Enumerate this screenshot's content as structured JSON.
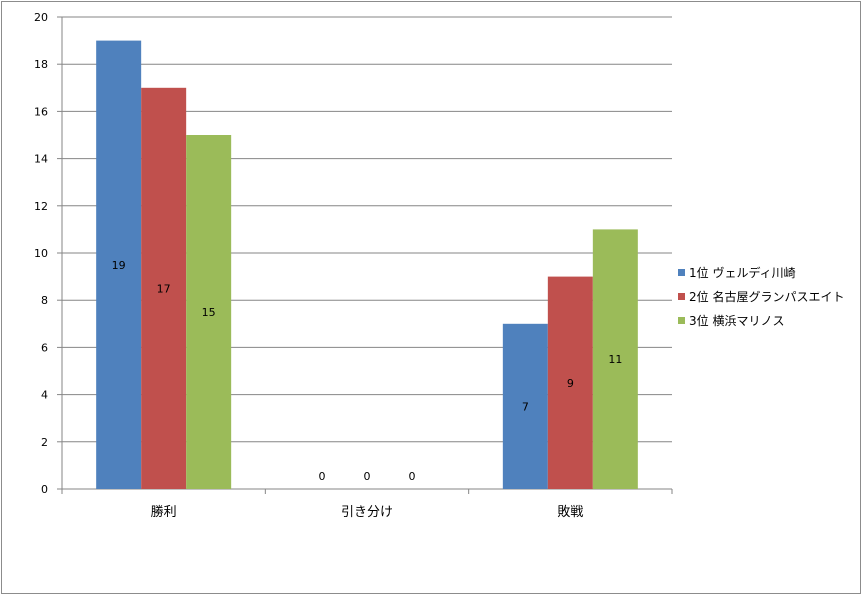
{
  "chart_data": {
    "type": "bar",
    "categories": [
      "勝利",
      "引き分け",
      "敗戦"
    ],
    "series": [
      {
        "name": "1位  ヴェルディ川崎",
        "color": "#4f81bd",
        "values": [
          19,
          0,
          7
        ]
      },
      {
        "name": "2位  名古屋グランパスエイト",
        "color": "#c0504d",
        "values": [
          17,
          0,
          9
        ]
      },
      {
        "name": "3位  横浜マリノス",
        "color": "#9bbb59",
        "values": [
          15,
          0,
          11
        ]
      }
    ],
    "ylim": [
      0,
      20
    ],
    "yticks": [
      0,
      2,
      4,
      6,
      8,
      10,
      12,
      14,
      16,
      18,
      20
    ],
    "grid": true,
    "data_labels": true,
    "legend_position": "right",
    "title": "",
    "xlabel": "",
    "ylabel": ""
  }
}
